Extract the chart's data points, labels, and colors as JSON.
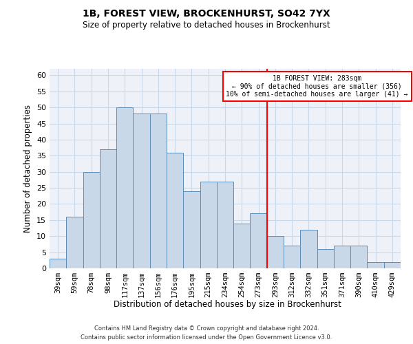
{
  "title1": "1B, FOREST VIEW, BROCKENHURST, SO42 7YX",
  "title2": "Size of property relative to detached houses in Brockenhurst",
  "xlabel": "Distribution of detached houses by size in Brockenhurst",
  "ylabel": "Number of detached properties",
  "footnote": "Contains HM Land Registry data © Crown copyright and database right 2024.\nContains public sector information licensed under the Open Government Licence v3.0.",
  "categories": [
    "39sqm",
    "59sqm",
    "78sqm",
    "98sqm",
    "117sqm",
    "137sqm",
    "156sqm",
    "176sqm",
    "195sqm",
    "215sqm",
    "234sqm",
    "254sqm",
    "273sqm",
    "293sqm",
    "312sqm",
    "332sqm",
    "351sqm",
    "371sqm",
    "390sqm",
    "410sqm",
    "429sqm"
  ],
  "values": [
    3,
    16,
    30,
    37,
    50,
    48,
    48,
    36,
    24,
    27,
    27,
    14,
    17,
    10,
    7,
    12,
    6,
    7,
    7,
    2,
    2
  ],
  "bar_color": "#c8d8e8",
  "bar_edge_color": "#5b8db8",
  "grid_color": "#c8d8e8",
  "background_color": "#eef2f8",
  "vline_color": "red",
  "annotation_text": "1B FOREST VIEW: 283sqm\n← 90% of detached houses are smaller (356)\n10% of semi-detached houses are larger (41) →",
  "ylim": [
    0,
    62
  ],
  "yticks": [
    0,
    5,
    10,
    15,
    20,
    25,
    30,
    35,
    40,
    45,
    50,
    55,
    60
  ]
}
